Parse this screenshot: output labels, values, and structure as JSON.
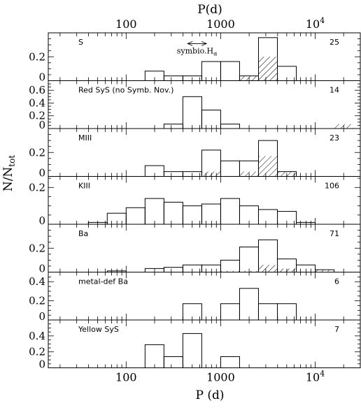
{
  "chart_data": {
    "type": "histogram",
    "x_scale": "log",
    "xlim": [
      15,
      30000
    ],
    "xlabel": "P (d)",
    "xlabel_top": "P(d)",
    "ylabel": "N/N",
    "ylabel_sub": "tot",
    "xticks": [
      {
        "value": 100,
        "label": "100"
      },
      {
        "value": 1000,
        "label": "1000"
      },
      {
        "value": 10000,
        "label": "10",
        "sup": "4"
      }
    ],
    "bin_edges_log": [
      1.6,
      1.8,
      2.0,
      2.2,
      2.4,
      2.6,
      2.8,
      3.0,
      3.2,
      3.4,
      3.6,
      3.8,
      4.0,
      4.2,
      4.4
    ],
    "panels": [
      {
        "name": "S",
        "count": "25",
        "ylim": [
          0,
          0.4
        ],
        "yticks": [
          "0",
          "0.2"
        ],
        "outline": [
          {
            "from": 2.2,
            "to": 2.4,
            "value": 0.08
          },
          {
            "from": 2.4,
            "to": 2.6,
            "value": 0.04
          },
          {
            "from": 2.6,
            "to": 2.8,
            "value": 0.04
          },
          {
            "from": 2.8,
            "to": 3.0,
            "value": 0.16
          },
          {
            "from": 3.0,
            "to": 3.2,
            "value": 0.16
          },
          {
            "from": 3.2,
            "to": 3.4,
            "value": 0.04
          },
          {
            "from": 3.4,
            "to": 3.6,
            "value": 0.36
          },
          {
            "from": 3.6,
            "to": 3.8,
            "value": 0.12
          }
        ],
        "hatched": [
          {
            "from": 3.2,
            "to": 3.4,
            "value": 0.04
          },
          {
            "from": 3.4,
            "to": 3.6,
            "value": 0.2
          }
        ],
        "annotation": {
          "text": "symbio.H",
          "sub": "α",
          "range_log": [
            2.65,
            2.85
          ],
          "level": 0.31
        }
      },
      {
        "name": "Red SyS (no Symb. Nov.)",
        "count": "14",
        "ylim": [
          0,
          0.75
        ],
        "yticks": [
          "0",
          "0.2",
          "0.4",
          "0.6"
        ],
        "outline": [
          {
            "from": 2.4,
            "to": 2.6,
            "value": 0.07
          },
          {
            "from": 2.6,
            "to": 2.8,
            "value": 0.5
          },
          {
            "from": 2.8,
            "to": 3.0,
            "value": 0.29
          },
          {
            "from": 3.0,
            "to": 3.2,
            "value": 0.07
          }
        ],
        "hatched": [
          {
            "from": 4.2,
            "to": 4.4,
            "value": 0.07
          }
        ]
      },
      {
        "name": "MIII",
        "count": "23",
        "ylim": [
          0,
          0.4
        ],
        "yticks": [
          "0",
          "0.2"
        ],
        "outline": [
          {
            "from": 2.2,
            "to": 2.4,
            "value": 0.09
          },
          {
            "from": 2.4,
            "to": 2.6,
            "value": 0.04
          },
          {
            "from": 2.6,
            "to": 2.8,
            "value": 0.04
          },
          {
            "from": 2.8,
            "to": 3.0,
            "value": 0.22
          },
          {
            "from": 3.0,
            "to": 3.2,
            "value": 0.13
          },
          {
            "from": 3.2,
            "to": 3.4,
            "value": 0.13
          },
          {
            "from": 3.4,
            "to": 3.6,
            "value": 0.3
          },
          {
            "from": 3.6,
            "to": 3.8,
            "value": 0.04
          }
        ],
        "hatched": [
          {
            "from": 2.8,
            "to": 3.0,
            "value": 0.04
          },
          {
            "from": 3.2,
            "to": 3.4,
            "value": 0.04
          },
          {
            "from": 3.4,
            "to": 3.6,
            "value": 0.17
          },
          {
            "from": 3.6,
            "to": 3.8,
            "value": 0.04
          }
        ]
      },
      {
        "name": "KIII",
        "count": "106",
        "ylim": [
          0,
          0.26
        ],
        "yticks": [
          "0",
          "0.2"
        ],
        "outline": [
          {
            "from": 1.6,
            "to": 1.8,
            "value": 0.01
          },
          {
            "from": 1.8,
            "to": 2.0,
            "value": 0.06
          },
          {
            "from": 2.0,
            "to": 2.2,
            "value": 0.09
          },
          {
            "from": 2.2,
            "to": 2.4,
            "value": 0.14
          },
          {
            "from": 2.4,
            "to": 2.6,
            "value": 0.12
          },
          {
            "from": 2.6,
            "to": 2.8,
            "value": 0.1
          },
          {
            "from": 2.8,
            "to": 3.0,
            "value": 0.11
          },
          {
            "from": 3.0,
            "to": 3.2,
            "value": 0.14
          },
          {
            "from": 3.2,
            "to": 3.4,
            "value": 0.1
          },
          {
            "from": 3.4,
            "to": 3.6,
            "value": 0.08
          },
          {
            "from": 3.6,
            "to": 3.8,
            "value": 0.07
          },
          {
            "from": 3.8,
            "to": 4.0,
            "value": 0.01
          }
        ],
        "hatched": []
      },
      {
        "name": "Ba",
        "count": "71",
        "ylim": [
          0,
          0.4
        ],
        "yticks": [
          "0",
          "0.2"
        ],
        "outline": [
          {
            "from": 1.8,
            "to": 2.0,
            "value": 0.01
          },
          {
            "from": 2.2,
            "to": 2.4,
            "value": 0.03
          },
          {
            "from": 2.4,
            "to": 2.6,
            "value": 0.04
          },
          {
            "from": 2.6,
            "to": 2.8,
            "value": 0.06
          },
          {
            "from": 2.8,
            "to": 3.0,
            "value": 0.06
          },
          {
            "from": 3.0,
            "to": 3.2,
            "value": 0.1
          },
          {
            "from": 3.2,
            "to": 3.4,
            "value": 0.21
          },
          {
            "from": 3.4,
            "to": 3.6,
            "value": 0.27
          },
          {
            "from": 3.6,
            "to": 3.8,
            "value": 0.11
          },
          {
            "from": 3.8,
            "to": 4.0,
            "value": 0.06
          },
          {
            "from": 4.0,
            "to": 4.2,
            "value": 0.02
          }
        ],
        "hatched": [
          {
            "from": 3.0,
            "to": 3.2,
            "value": 0.01
          },
          {
            "from": 3.2,
            "to": 3.4,
            "value": 0.01
          },
          {
            "from": 3.4,
            "to": 3.6,
            "value": 0.06
          },
          {
            "from": 3.6,
            "to": 3.8,
            "value": 0.03
          },
          {
            "from": 4.0,
            "to": 4.2,
            "value": 0.02
          }
        ]
      },
      {
        "name": "metal-def Ba",
        "count": "6",
        "ylim": [
          0,
          0.5
        ],
        "yticks": [
          "0",
          "0.2",
          "0.4"
        ],
        "outline": [
          {
            "from": 2.6,
            "to": 2.8,
            "value": 0.17
          },
          {
            "from": 3.0,
            "to": 3.2,
            "value": 0.17
          },
          {
            "from": 3.2,
            "to": 3.4,
            "value": 0.33
          },
          {
            "from": 3.4,
            "to": 3.6,
            "value": 0.17
          },
          {
            "from": 3.6,
            "to": 3.8,
            "value": 0.17
          }
        ],
        "hatched": []
      },
      {
        "name": "Yellow SyS",
        "count": "7",
        "ylim": [
          0,
          0.6
        ],
        "yticks": [
          "0",
          "0.2",
          "0.4"
        ],
        "outline": [
          {
            "from": 2.2,
            "to": 2.4,
            "value": 0.29
          },
          {
            "from": 2.4,
            "to": 2.6,
            "value": 0.14
          },
          {
            "from": 2.6,
            "to": 2.8,
            "value": 0.43
          },
          {
            "from": 3.0,
            "to": 3.2,
            "value": 0.14
          }
        ],
        "hatched": []
      }
    ]
  }
}
